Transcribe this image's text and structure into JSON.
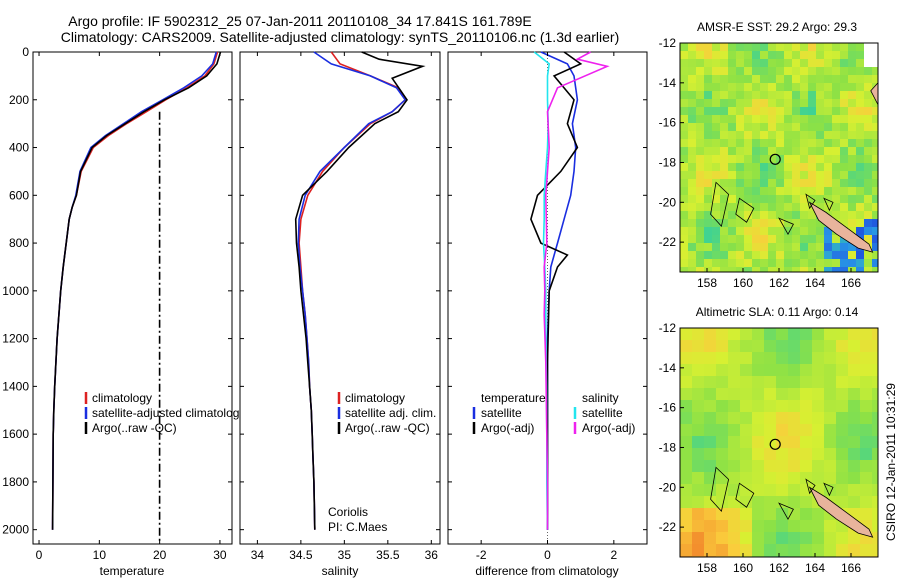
{
  "figure": {
    "title_line1": "Argo profile: IF 5902312_25 07-Jan-2011 20110108_34 17.841S 161.789E",
    "title_line2": "Climatology: CARS2009. Satellite-adjusted climatology: synTS_20110106.nc (1.3d earlier)",
    "credit": "CSIRO 12-Jan-2011 10:31:29"
  },
  "colors": {
    "climatology": "#dd2222",
    "satellite": "#1a2ee0",
    "argo": "#000000",
    "argo_adj": "#ee22ee",
    "salinity_sat": "#22e5ee",
    "land": "#e8b49c"
  },
  "chart_data": [
    {
      "id": "temperature",
      "type": "line",
      "xlabel": "temperature",
      "ylabel": "",
      "xlim": [
        -1,
        32
      ],
      "ylim": [
        2060,
        0
      ],
      "xticks": [
        0,
        10,
        20,
        30
      ],
      "yticks": [
        0,
        200,
        400,
        600,
        800,
        1000,
        1200,
        1400,
        1600,
        1800,
        2000
      ],
      "y_reversed": true,
      "legend": [
        "climatology",
        "satellite-adjusted climatology",
        "Argo(..raw -QC)"
      ],
      "series": [
        {
          "name": "climatology",
          "color": "#dd2222",
          "dash": "",
          "x": [
            29.6,
            29.0,
            27.5,
            24.5,
            21.0,
            17.8,
            14.5,
            11.5,
            9.0,
            7.0,
            6.2,
            5.5,
            5.0,
            4.5,
            4.0,
            3.6,
            3.3,
            3.0,
            2.8,
            2.6,
            2.45,
            2.35,
            2.25
          ],
          "y": [
            0,
            50,
            100,
            150,
            200,
            250,
            300,
            350,
            400,
            500,
            600,
            650,
            700,
            800,
            900,
            1000,
            1100,
            1200,
            1300,
            1400,
            1500,
            1600,
            2000
          ]
        },
        {
          "name": "satellite-adjusted climatology",
          "color": "#1a2ee0",
          "dash": "",
          "x": [
            29.4,
            28.8,
            27.0,
            24.0,
            20.5,
            17.0,
            14.0,
            11.0,
            8.6,
            6.8,
            6.1,
            5.5,
            5.0,
            4.5,
            4.0,
            3.6,
            3.3,
            3.0,
            2.8,
            2.6,
            2.45,
            2.35,
            2.25
          ],
          "y": [
            0,
            50,
            100,
            150,
            200,
            250,
            300,
            350,
            400,
            500,
            600,
            650,
            700,
            800,
            900,
            1000,
            1100,
            1200,
            1300,
            1400,
            1500,
            1600,
            2000
          ]
        },
        {
          "name": "Argo(..raw -QC)",
          "color": "#000000",
          "dash": "",
          "x": [
            30.1,
            29.5,
            27.8,
            24.8,
            20.8,
            17.4,
            14.3,
            11.2,
            8.8,
            6.9,
            6.2,
            5.5,
            5.0,
            4.5,
            4.0,
            3.6,
            3.3,
            3.0,
            2.8,
            2.6,
            2.45,
            2.35,
            2.25
          ],
          "y": [
            0,
            50,
            100,
            150,
            200,
            250,
            300,
            350,
            400,
            500,
            600,
            650,
            700,
            800,
            900,
            1000,
            1100,
            1200,
            1300,
            1400,
            1500,
            1600,
            2000
          ]
        },
        {
          "name": "reference",
          "color": "#000000",
          "dash": "8,3,2,3",
          "x": [
            20,
            20
          ],
          "y": [
            250,
            2060
          ]
        }
      ]
    },
    {
      "id": "salinity",
      "type": "line",
      "xlabel": "salinity",
      "xlim": [
        33.8,
        36.1
      ],
      "ylim": [
        2060,
        0
      ],
      "xticks": [
        34,
        34.5,
        35,
        35.5,
        36
      ],
      "y_reversed": true,
      "legend": [
        "climatology",
        "satellite adj. clim.",
        "Argo(..raw -QC)"
      ],
      "annotation": [
        "Coriolis",
        "PI: C.Maes"
      ],
      "series": [
        {
          "name": "climatology",
          "color": "#dd2222",
          "dash": "",
          "x": [
            34.85,
            34.95,
            35.3,
            35.62,
            35.7,
            35.55,
            35.3,
            35.0,
            34.75,
            34.58,
            34.5,
            34.48,
            34.5,
            34.52,
            34.55,
            34.57,
            34.59,
            34.6,
            34.62,
            34.63,
            34.64,
            34.65,
            34.66
          ],
          "y": [
            0,
            50,
            100,
            150,
            200,
            250,
            300,
            400,
            500,
            600,
            700,
            800,
            900,
            1000,
            1100,
            1200,
            1300,
            1400,
            1500,
            1600,
            1700,
            1800,
            2000
          ]
        },
        {
          "name": "satellite adj. clim.",
          "color": "#1a2ee0",
          "dash": "",
          "x": [
            34.65,
            34.85,
            35.3,
            35.6,
            35.7,
            35.55,
            35.28,
            35.0,
            34.72,
            34.55,
            34.48,
            34.47,
            34.49,
            34.52,
            34.55,
            34.57,
            34.59,
            34.6,
            34.62,
            34.63,
            34.64,
            34.65,
            34.66
          ],
          "y": [
            0,
            50,
            100,
            150,
            200,
            250,
            300,
            400,
            500,
            600,
            700,
            800,
            900,
            1000,
            1100,
            1200,
            1300,
            1400,
            1500,
            1600,
            1700,
            1800,
            2000
          ]
        },
        {
          "name": "Argo(..raw -QC)",
          "color": "#000000",
          "dash": "",
          "x": [
            35.2,
            35.4,
            35.9,
            35.55,
            35.72,
            35.62,
            35.35,
            35.05,
            34.8,
            34.52,
            34.44,
            34.45,
            34.48,
            34.5,
            34.53,
            34.56,
            34.58,
            34.6,
            34.62,
            34.63,
            34.64,
            34.65,
            34.66
          ],
          "y": [
            0,
            30,
            60,
            110,
            200,
            250,
            300,
            400,
            500,
            600,
            700,
            800,
            900,
            1000,
            1100,
            1200,
            1300,
            1400,
            1500,
            1600,
            1700,
            1800,
            2000
          ]
        }
      ]
    },
    {
      "id": "difference",
      "type": "line",
      "xlabel": "difference from climatology",
      "xlim": [
        -3,
        3
      ],
      "ylim": [
        2060,
        0
      ],
      "xticks": [
        -2,
        0,
        2
      ],
      "y_reversed": true,
      "legend_temperature_title": "temperature",
      "legend_salinity_title": "salinity",
      "legend": [
        "satellite",
        "Argo(-adj)",
        "satellite",
        "Argo(-adj)"
      ],
      "series": [
        {
          "name": "temperature satellite",
          "color": "#1a2ee0",
          "dash": "",
          "x": [
            -0.2,
            0.6,
            0.8,
            0.9,
            0.75,
            0.85,
            0.8,
            0.7,
            0.5,
            0.3,
            0.1,
            0.05,
            0.0,
            0.0,
            0.0,
            0.0
          ],
          "y": [
            0,
            50,
            100,
            200,
            300,
            400,
            500,
            600,
            700,
            800,
            900,
            1000,
            1200,
            1500,
            1800,
            2000
          ]
        },
        {
          "name": "temperature Argo(-adj)",
          "color": "#000000",
          "dash": "",
          "x": [
            0.5,
            1.0,
            0.2,
            0.8,
            0.6,
            0.9,
            0.4,
            -0.3,
            -0.5,
            -0.2,
            0.6,
            0.3,
            0.05,
            0.0,
            0.0,
            0.0
          ],
          "y": [
            0,
            50,
            100,
            200,
            300,
            400,
            500,
            600,
            700,
            800,
            850,
            900,
            1000,
            1300,
            1700,
            2000
          ]
        },
        {
          "name": "salinity satellite",
          "color": "#22e5ee",
          "dash": "",
          "x": [
            -0.4,
            0.05,
            0.0,
            0.0,
            0.02,
            0.0,
            -0.05,
            -0.1,
            -0.1,
            -0.12,
            -0.08,
            -0.05,
            -0.05,
            -0.03,
            -0.02,
            -0.02,
            0.0
          ],
          "y": [
            0,
            50,
            100,
            200,
            300,
            400,
            500,
            600,
            700,
            800,
            900,
            1000,
            1200,
            1400,
            1600,
            1800,
            2000
          ]
        },
        {
          "name": "salinity Argo(-adj)",
          "color": "#ee22ee",
          "dash": "",
          "x": [
            1.3,
            0.9,
            1.8,
            0.3,
            0.0,
            0.05,
            -0.05,
            -0.02,
            -0.1,
            -0.08,
            -0.1,
            -0.05,
            -0.02,
            0.0,
            0.0
          ],
          "y": [
            0,
            30,
            60,
            150,
            250,
            400,
            600,
            800,
            900,
            1000,
            1100,
            1300,
            1600,
            1800,
            2000
          ]
        }
      ]
    },
    {
      "id": "sst_map",
      "type": "heatmap",
      "title": "AMSR-E SST: 29.2 Argo: 29.3",
      "xlim": [
        156.5,
        167.5
      ],
      "ylim": [
        -23.5,
        -12
      ],
      "xticks": [
        158,
        160,
        162,
        164,
        166
      ],
      "yticks": [
        -12,
        -14,
        -16,
        -18,
        -20,
        -22
      ],
      "marker": [
        161.789,
        -17.841
      ]
    },
    {
      "id": "sla_map",
      "type": "heatmap",
      "title": "Altimetric SLA: 0.11 Argo: 0.14",
      "xlim": [
        156.5,
        167.5
      ],
      "ylim": [
        -23.5,
        -12
      ],
      "xticks": [
        158,
        160,
        162,
        164,
        166
      ],
      "yticks": [
        -12,
        -14,
        -16,
        -18,
        -20,
        -22
      ],
      "marker": [
        161.789,
        -17.841
      ]
    }
  ]
}
